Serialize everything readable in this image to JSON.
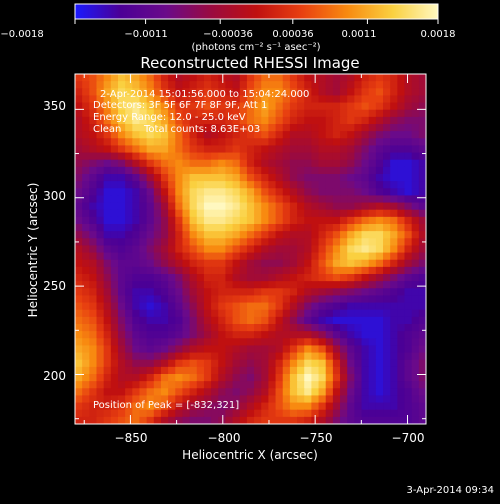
{
  "colorbar": {
    "ticks": [
      "−0.0018",
      "−0.0011",
      "−0.00036",
      "0.00036",
      "0.0011",
      "0.0018"
    ],
    "unit_label": "(photons cm⁻² s⁻¹ asec⁻²)",
    "range": [
      -0.0018,
      0.0018
    ]
  },
  "chart_data": {
    "type": "heatmap",
    "title": "Reconstructed RHESSI Image",
    "xlabel": "Heliocentric X (arcsec)",
    "ylabel": "Heliocentric Y (arcsec)",
    "xlim": [
      -880,
      -690
    ],
    "ylim": [
      172,
      370
    ],
    "xticks": [
      -850,
      -800,
      -750,
      -700
    ],
    "yticks": [
      200,
      250,
      300,
      350
    ],
    "xtick_labels": [
      "−850",
      "−800",
      "−750",
      "−700"
    ],
    "ytick_labels": [
      "200",
      "250",
      "300",
      "350"
    ],
    "colormap": [
      "#1a1aff",
      "#4b0096",
      "#6a0a8a",
      "#9a0a40",
      "#c01010",
      "#e84010",
      "#f88a10",
      "#fad040",
      "#fff8c0"
    ],
    "grid_shape": [
      25,
      25
    ],
    "intensity": [
      [
        0.6,
        0.65,
        0.75,
        0.85,
        0.8,
        0.7,
        0.55,
        0.45,
        0.5,
        0.55,
        0.5,
        0.45,
        0.6,
        0.7,
        0.7,
        0.6,
        0.5,
        0.45,
        0.4,
        0.45,
        0.55,
        0.6,
        0.55,
        0.45,
        0.4
      ],
      [
        0.55,
        0.65,
        0.8,
        0.9,
        0.85,
        0.75,
        0.6,
        0.5,
        0.55,
        0.6,
        0.55,
        0.5,
        0.65,
        0.75,
        0.75,
        0.65,
        0.55,
        0.45,
        0.4,
        0.5,
        0.6,
        0.65,
        0.55,
        0.45,
        0.4
      ],
      [
        0.5,
        0.6,
        0.75,
        0.9,
        0.95,
        0.85,
        0.75,
        0.6,
        0.6,
        0.65,
        0.6,
        0.6,
        0.7,
        0.8,
        0.7,
        0.6,
        0.55,
        0.55,
        0.55,
        0.6,
        0.65,
        0.6,
        0.5,
        0.4,
        0.35
      ],
      [
        0.45,
        0.55,
        0.7,
        0.85,
        0.95,
        0.9,
        0.8,
        0.65,
        0.55,
        0.55,
        0.55,
        0.6,
        0.7,
        0.75,
        0.65,
        0.55,
        0.5,
        0.5,
        0.55,
        0.6,
        0.55,
        0.45,
        0.35,
        0.3,
        0.3
      ],
      [
        0.45,
        0.5,
        0.6,
        0.75,
        0.85,
        0.9,
        0.85,
        0.7,
        0.55,
        0.45,
        0.5,
        0.55,
        0.6,
        0.65,
        0.55,
        0.45,
        0.45,
        0.5,
        0.55,
        0.5,
        0.4,
        0.3,
        0.25,
        0.25,
        0.3
      ],
      [
        0.4,
        0.45,
        0.5,
        0.6,
        0.7,
        0.8,
        0.8,
        0.7,
        0.6,
        0.55,
        0.55,
        0.6,
        0.55,
        0.5,
        0.45,
        0.4,
        0.4,
        0.45,
        0.45,
        0.4,
        0.3,
        0.2,
        0.15,
        0.15,
        0.2
      ],
      [
        0.35,
        0.3,
        0.25,
        0.3,
        0.45,
        0.6,
        0.7,
        0.75,
        0.7,
        0.7,
        0.75,
        0.7,
        0.55,
        0.45,
        0.4,
        0.35,
        0.35,
        0.4,
        0.4,
        0.35,
        0.25,
        0.15,
        0.05,
        0.05,
        0.1
      ],
      [
        0.3,
        0.2,
        0.1,
        0.1,
        0.2,
        0.4,
        0.6,
        0.75,
        0.85,
        0.85,
        0.85,
        0.8,
        0.65,
        0.55,
        0.45,
        0.35,
        0.3,
        0.3,
        0.3,
        0.25,
        0.2,
        0.1,
        0.05,
        0.05,
        0.1
      ],
      [
        0.25,
        0.15,
        0.05,
        0.05,
        0.1,
        0.25,
        0.5,
        0.75,
        0.9,
        0.95,
        0.95,
        0.9,
        0.8,
        0.65,
        0.55,
        0.45,
        0.35,
        0.3,
        0.3,
        0.3,
        0.25,
        0.15,
        0.1,
        0.05,
        0.1
      ],
      [
        0.2,
        0.1,
        0.05,
        0.05,
        0.1,
        0.2,
        0.4,
        0.7,
        0.9,
        1.0,
        1.0,
        0.95,
        0.85,
        0.75,
        0.65,
        0.55,
        0.45,
        0.4,
        0.35,
        0.35,
        0.4,
        0.45,
        0.4,
        0.3,
        0.2
      ],
      [
        0.25,
        0.15,
        0.05,
        0.05,
        0.1,
        0.2,
        0.35,
        0.6,
        0.85,
        0.95,
        0.95,
        0.9,
        0.85,
        0.75,
        0.65,
        0.55,
        0.5,
        0.5,
        0.5,
        0.6,
        0.7,
        0.75,
        0.7,
        0.55,
        0.4
      ],
      [
        0.35,
        0.25,
        0.1,
        0.1,
        0.15,
        0.25,
        0.35,
        0.55,
        0.75,
        0.85,
        0.85,
        0.8,
        0.7,
        0.6,
        0.5,
        0.45,
        0.45,
        0.55,
        0.65,
        0.8,
        0.9,
        0.9,
        0.8,
        0.65,
        0.45
      ],
      [
        0.45,
        0.35,
        0.2,
        0.15,
        0.2,
        0.3,
        0.4,
        0.55,
        0.65,
        0.75,
        0.75,
        0.65,
        0.55,
        0.45,
        0.4,
        0.4,
        0.45,
        0.6,
        0.75,
        0.9,
        0.95,
        0.9,
        0.75,
        0.55,
        0.4
      ],
      [
        0.5,
        0.45,
        0.3,
        0.2,
        0.2,
        0.25,
        0.35,
        0.45,
        0.55,
        0.6,
        0.6,
        0.5,
        0.4,
        0.35,
        0.35,
        0.4,
        0.5,
        0.65,
        0.8,
        0.85,
        0.8,
        0.7,
        0.55,
        0.4,
        0.3
      ],
      [
        0.55,
        0.5,
        0.35,
        0.2,
        0.15,
        0.15,
        0.2,
        0.3,
        0.45,
        0.55,
        0.55,
        0.45,
        0.4,
        0.4,
        0.45,
        0.5,
        0.55,
        0.6,
        0.65,
        0.6,
        0.5,
        0.4,
        0.3,
        0.2,
        0.15
      ],
      [
        0.6,
        0.55,
        0.4,
        0.2,
        0.1,
        0.1,
        0.15,
        0.25,
        0.4,
        0.5,
        0.55,
        0.55,
        0.55,
        0.6,
        0.6,
        0.55,
        0.45,
        0.4,
        0.35,
        0.3,
        0.25,
        0.2,
        0.15,
        0.1,
        0.1
      ],
      [
        0.65,
        0.6,
        0.45,
        0.25,
        0.1,
        0.05,
        0.1,
        0.2,
        0.35,
        0.5,
        0.6,
        0.65,
        0.7,
        0.7,
        0.6,
        0.45,
        0.3,
        0.2,
        0.15,
        0.1,
        0.1,
        0.1,
        0.1,
        0.1,
        0.1
      ],
      [
        0.7,
        0.65,
        0.5,
        0.3,
        0.15,
        0.1,
        0.1,
        0.15,
        0.3,
        0.45,
        0.55,
        0.65,
        0.7,
        0.65,
        0.5,
        0.35,
        0.2,
        0.1,
        0.05,
        0.05,
        0.05,
        0.05,
        0.1,
        0.1,
        0.15
      ],
      [
        0.75,
        0.7,
        0.55,
        0.35,
        0.2,
        0.15,
        0.15,
        0.2,
        0.3,
        0.4,
        0.5,
        0.55,
        0.55,
        0.5,
        0.45,
        0.45,
        0.45,
        0.35,
        0.2,
        0.1,
        0.05,
        0.05,
        0.1,
        0.15,
        0.2
      ],
      [
        0.8,
        0.75,
        0.6,
        0.4,
        0.25,
        0.2,
        0.25,
        0.35,
        0.45,
        0.5,
        0.5,
        0.45,
        0.4,
        0.4,
        0.45,
        0.6,
        0.75,
        0.65,
        0.4,
        0.2,
        0.1,
        0.05,
        0.1,
        0.15,
        0.25
      ],
      [
        0.85,
        0.75,
        0.6,
        0.45,
        0.35,
        0.35,
        0.45,
        0.6,
        0.65,
        0.6,
        0.5,
        0.4,
        0.35,
        0.4,
        0.55,
        0.75,
        0.9,
        0.85,
        0.55,
        0.25,
        0.1,
        0.05,
        0.1,
        0.2,
        0.3
      ],
      [
        0.8,
        0.7,
        0.55,
        0.45,
        0.45,
        0.55,
        0.7,
        0.75,
        0.7,
        0.6,
        0.45,
        0.35,
        0.3,
        0.4,
        0.6,
        0.85,
        1.0,
        0.9,
        0.6,
        0.3,
        0.1,
        0.05,
        0.1,
        0.2,
        0.3
      ],
      [
        0.7,
        0.6,
        0.5,
        0.5,
        0.6,
        0.7,
        0.75,
        0.65,
        0.55,
        0.45,
        0.35,
        0.3,
        0.35,
        0.45,
        0.65,
        0.85,
        0.95,
        0.8,
        0.5,
        0.25,
        0.1,
        0.05,
        0.1,
        0.15,
        0.25
      ],
      [
        0.6,
        0.55,
        0.55,
        0.6,
        0.7,
        0.75,
        0.65,
        0.5,
        0.4,
        0.35,
        0.3,
        0.35,
        0.45,
        0.55,
        0.65,
        0.75,
        0.75,
        0.6,
        0.4,
        0.2,
        0.1,
        0.1,
        0.1,
        0.15,
        0.2
      ],
      [
        0.55,
        0.55,
        0.6,
        0.65,
        0.7,
        0.6,
        0.45,
        0.35,
        0.3,
        0.3,
        0.35,
        0.45,
        0.55,
        0.6,
        0.6,
        0.6,
        0.55,
        0.45,
        0.3,
        0.2,
        0.15,
        0.15,
        0.15,
        0.15,
        0.2
      ]
    ]
  },
  "annotations": {
    "time_range": "2-Apr-2014 15:01:56.000 to 15:04:24.000",
    "detectors": "Detectors: 3F 5F 6F 7F 8F 9F, Att 1",
    "energy": "Energy Range: 12.0 - 25.0 keV",
    "method": "Clean",
    "total_counts": "Total counts: 8.63E+03",
    "peak": "Position of Peak = [-832,321]"
  },
  "footer": {
    "date": "3-Apr-2014 09:34"
  }
}
